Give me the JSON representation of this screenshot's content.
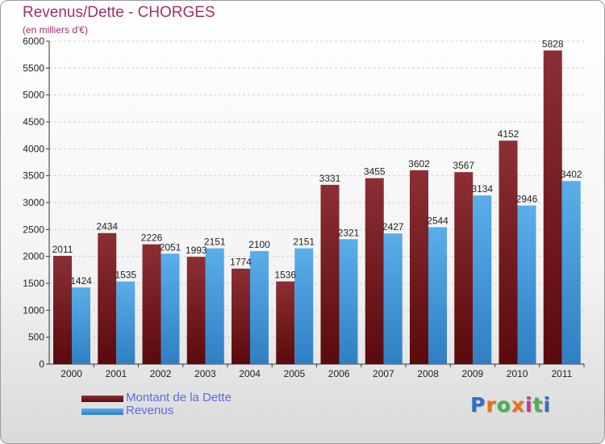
{
  "header": {
    "title": "Revenus/Dette - CHORGES",
    "subtitle": "(en milliers d'€)"
  },
  "legend": {
    "debt_label": "Montant de la Dette",
    "revenue_label": "Revenus"
  },
  "logo": {
    "text": "Proxiti",
    "colors": [
      "#2e6fcf",
      "#e8721c",
      "#4caf50",
      "#e8721c",
      "#c23c8c",
      "#4caf50",
      "#2e6fcf"
    ]
  },
  "colors": {
    "debt": "#7a1f22",
    "revenue": "#4a9fe0",
    "title": "#a0306a",
    "legend_text": "#5a6de0"
  },
  "chart_data": {
    "type": "bar",
    "title": "Revenus/Dette - CHORGES",
    "ylabel": "(en milliers d'€)",
    "categories": [
      "2000",
      "2001",
      "2002",
      "2003",
      "2004",
      "2005",
      "2006",
      "2007",
      "2008",
      "2009",
      "2010",
      "2011"
    ],
    "series": [
      {
        "name": "Montant de la Dette",
        "values": [
          2011,
          2434,
          2226,
          1993,
          1774,
          1536,
          3331,
          3455,
          3602,
          3567,
          4152,
          5828
        ]
      },
      {
        "name": "Revenus",
        "values": [
          1424,
          1535,
          2051,
          2151,
          2100,
          2151,
          2321,
          2427,
          2544,
          3134,
          2946,
          3402
        ]
      }
    ],
    "ylim": [
      0,
      6000
    ],
    "yticks": [
      0,
      500,
      1000,
      1500,
      2000,
      2500,
      3000,
      3500,
      4000,
      4500,
      5000,
      5500,
      6000
    ],
    "grid": true,
    "legend": "bottom-left"
  }
}
